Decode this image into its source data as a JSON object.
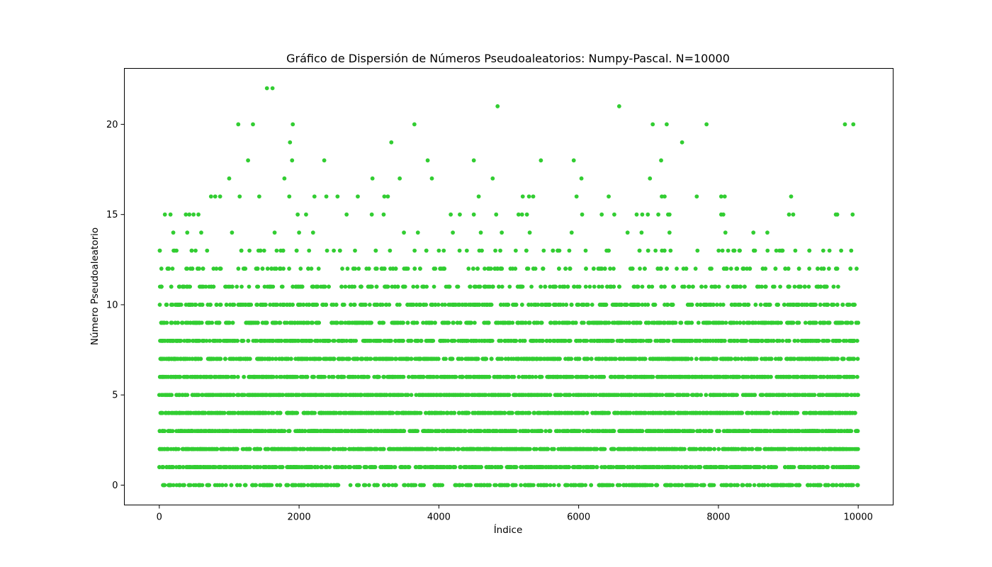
{
  "chart_data": {
    "type": "scatter",
    "title": "Gráfico de Dispersión de Números Pseudoaleatorios: Numpy-Pascal. N=10000",
    "xlabel": "Índice",
    "ylabel": "Número Pseudoaleatorio",
    "xlim": [
      -500,
      10500
    ],
    "ylim": [
      -1.1,
      23.1
    ],
    "x_ticks": [
      0,
      2000,
      4000,
      6000,
      8000,
      10000
    ],
    "x_tick_labels": [
      "0",
      "2000",
      "4000",
      "6000",
      "8000",
      "10000"
    ],
    "y_ticks": [
      0,
      5,
      10,
      15,
      20
    ],
    "y_tick_labels": [
      "0",
      "5",
      "10",
      "15",
      "20"
    ],
    "grid": false,
    "legend": "none",
    "marker_color": "#32cd32",
    "n_points": 10000,
    "series": [
      {
        "points": [
          [
            1540,
            22
          ],
          [
            1620,
            22
          ],
          [
            4840,
            21
          ],
          [
            6580,
            21
          ],
          [
            1130,
            20
          ],
          [
            1340,
            20
          ],
          [
            1910,
            20
          ],
          [
            3650,
            20
          ],
          [
            7060,
            20
          ],
          [
            7260,
            20
          ],
          [
            7830,
            20
          ],
          [
            9810,
            20
          ],
          [
            9930,
            20
          ],
          [
            1870,
            19
          ],
          [
            3320,
            19
          ],
          [
            7480,
            19
          ],
          [
            1270,
            18
          ],
          [
            1900,
            18
          ],
          [
            2360,
            18
          ],
          [
            3840,
            18
          ],
          [
            4500,
            18
          ],
          [
            5460,
            18
          ],
          [
            5930,
            18
          ],
          [
            7180,
            18
          ],
          [
            1000,
            17
          ],
          [
            1790,
            17
          ],
          [
            3050,
            17
          ],
          [
            3440,
            17
          ],
          [
            3900,
            17
          ],
          [
            4770,
            17
          ],
          [
            6040,
            17
          ],
          [
            7020,
            17
          ],
          [
            740,
            16
          ],
          [
            800,
            16
          ],
          [
            870,
            16
          ],
          [
            1150,
            16
          ],
          [
            1430,
            16
          ],
          [
            1860,
            16
          ],
          [
            2220,
            16
          ],
          [
            2390,
            16
          ],
          [
            2550,
            16
          ],
          [
            2840,
            16
          ],
          [
            3220,
            16
          ],
          [
            3270,
            16
          ],
          [
            4570,
            16
          ],
          [
            5200,
            16
          ],
          [
            5290,
            16
          ],
          [
            5350,
            16
          ],
          [
            5970,
            16
          ],
          [
            6430,
            16
          ],
          [
            7190,
            16
          ],
          [
            7230,
            16
          ],
          [
            7690,
            16
          ],
          [
            8040,
            16
          ],
          [
            8090,
            16
          ],
          [
            9040,
            16
          ],
          [
            80,
            15
          ],
          [
            160,
            15
          ],
          [
            380,
            15
          ],
          [
            430,
            15
          ],
          [
            490,
            15
          ],
          [
            560,
            15
          ],
          [
            1980,
            15
          ],
          [
            2100,
            15
          ],
          [
            2680,
            15
          ],
          [
            3040,
            15
          ],
          [
            3210,
            15
          ],
          [
            4170,
            15
          ],
          [
            4300,
            15
          ],
          [
            4500,
            15
          ],
          [
            4820,
            15
          ],
          [
            5140,
            15
          ],
          [
            5190,
            15
          ],
          [
            5260,
            15
          ],
          [
            6050,
            15
          ],
          [
            6330,
            15
          ],
          [
            6510,
            15
          ],
          [
            6830,
            15
          ],
          [
            6910,
            15
          ],
          [
            6990,
            15
          ],
          [
            7140,
            15
          ],
          [
            7280,
            15
          ],
          [
            7300,
            15
          ],
          [
            8040,
            15
          ],
          [
            8070,
            15
          ],
          [
            9010,
            15
          ],
          [
            9070,
            15
          ],
          [
            9680,
            15
          ],
          [
            9700,
            15
          ],
          [
            9920,
            15
          ],
          [
            30,
            12
          ],
          [
            200,
            14
          ],
          [
            400,
            14
          ],
          [
            600,
            14
          ],
          [
            1040,
            14
          ],
          [
            1290,
            13
          ],
          [
            1500,
            13
          ],
          [
            1650,
            14
          ],
          [
            2000,
            14
          ],
          [
            2200,
            14
          ],
          [
            2400,
            13
          ],
          [
            2800,
            13
          ],
          [
            3000,
            12
          ],
          [
            3300,
            13
          ],
          [
            3500,
            14
          ],
          [
            3700,
            14
          ],
          [
            4000,
            13
          ],
          [
            4200,
            14
          ],
          [
            4400,
            13
          ],
          [
            4600,
            14
          ],
          [
            4900,
            14
          ],
          [
            5100,
            13
          ],
          [
            5300,
            14
          ],
          [
            5500,
            13
          ],
          [
            5700,
            13
          ],
          [
            5900,
            14
          ],
          [
            6100,
            13
          ],
          [
            6300,
            12
          ],
          [
            6500,
            12
          ],
          [
            6700,
            14
          ],
          [
            6900,
            14
          ],
          [
            7100,
            13
          ],
          [
            7300,
            14
          ],
          [
            7500,
            12
          ],
          [
            7700,
            13
          ],
          [
            7900,
            12
          ],
          [
            8100,
            14
          ],
          [
            8300,
            13
          ],
          [
            8500,
            14
          ],
          [
            8700,
            14
          ],
          [
            8900,
            13
          ],
          [
            9100,
            13
          ],
          [
            9300,
            12
          ],
          [
            9500,
            13
          ],
          [
            9700,
            12
          ],
          [
            9900,
            13
          ]
        ]
      }
    ]
  }
}
